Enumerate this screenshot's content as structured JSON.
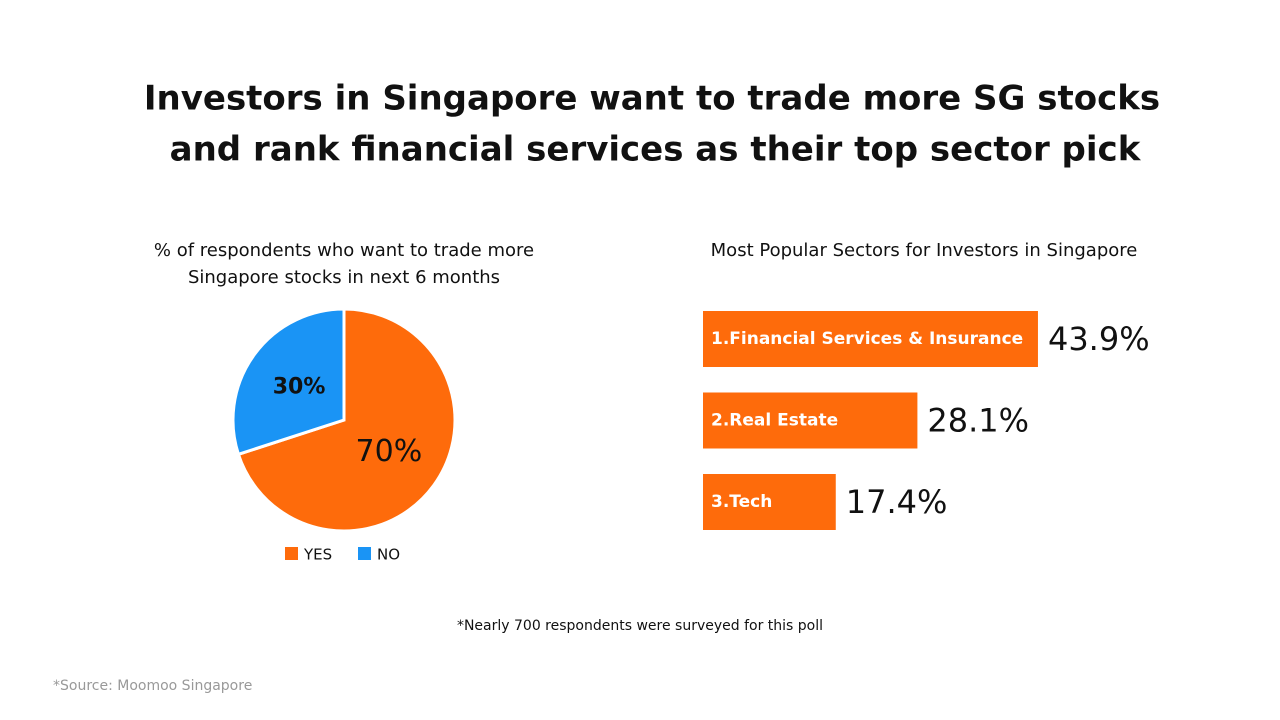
{
  "title": [
    "Investors in Singapore want to trade more SG stocks",
    "and rank financial services as their top sector pick"
  ],
  "chart_data": [
    {
      "type": "pie",
      "title": [
        "% of respondents who want to trade more",
        "Singapore stocks in next 6 months"
      ],
      "categories": [
        "YES",
        "NO"
      ],
      "values": [
        70,
        30
      ],
      "value_labels": [
        "70%",
        "30%"
      ],
      "colors": [
        "#fe6b0b",
        "#1a94f5"
      ],
      "legend": "bottom"
    },
    {
      "type": "hbar",
      "title": "Most Popular Sectors for Investors in Singapore",
      "categories": [
        "1.Financial Services & Insurance",
        "2.Real Estate",
        "3.Tech"
      ],
      "values": [
        43.9,
        28.1,
        17.4
      ],
      "value_labels": [
        "43.9%",
        "28.1%",
        "17.4%"
      ],
      "color": "#fe6b0b"
    }
  ],
  "footnote": "*Nearly 700 respondents were surveyed for this poll",
  "source": "*Source: Moomoo Singapore"
}
